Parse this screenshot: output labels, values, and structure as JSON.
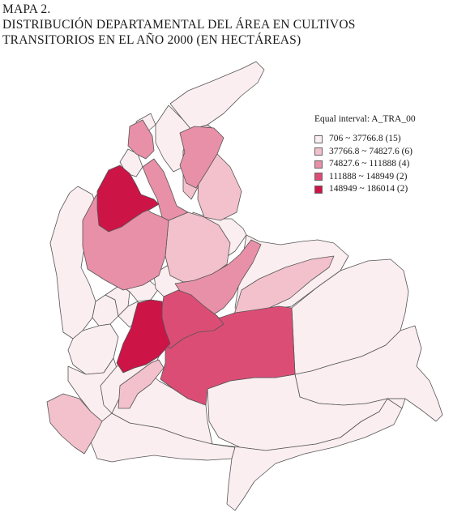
{
  "header": {
    "line1": "MAPA 2.",
    "line2": "DISTRIBUCIÓN DEPARTAMENTAL DEL ÁREA EN CULTIVOS",
    "line3": "TRANSITORIOS EN EL AÑO 2000 (EN HECTÁREAS)"
  },
  "legend": {
    "title": "Equal interval: A_TRA_00",
    "classes": [
      {
        "label": "706 ~ 37766.8 (15)",
        "color": "#fbeef1"
      },
      {
        "label": "37766.8 ~ 74827.6 (6)",
        "color": "#f2c1cc"
      },
      {
        "label": "74827.6 ~ 111888 (4)",
        "color": "#e890a7"
      },
      {
        "label": "111888 ~ 148949 (2)",
        "color": "#dc4d76"
      },
      {
        "label": "148949 ~ 186014 (2)",
        "color": "#cc1447"
      }
    ]
  },
  "map": {
    "fill_by_class": [
      "#fbeef1",
      "#f2c1cc",
      "#e890a7",
      "#dc4d76",
      "#cc1447"
    ]
  }
}
